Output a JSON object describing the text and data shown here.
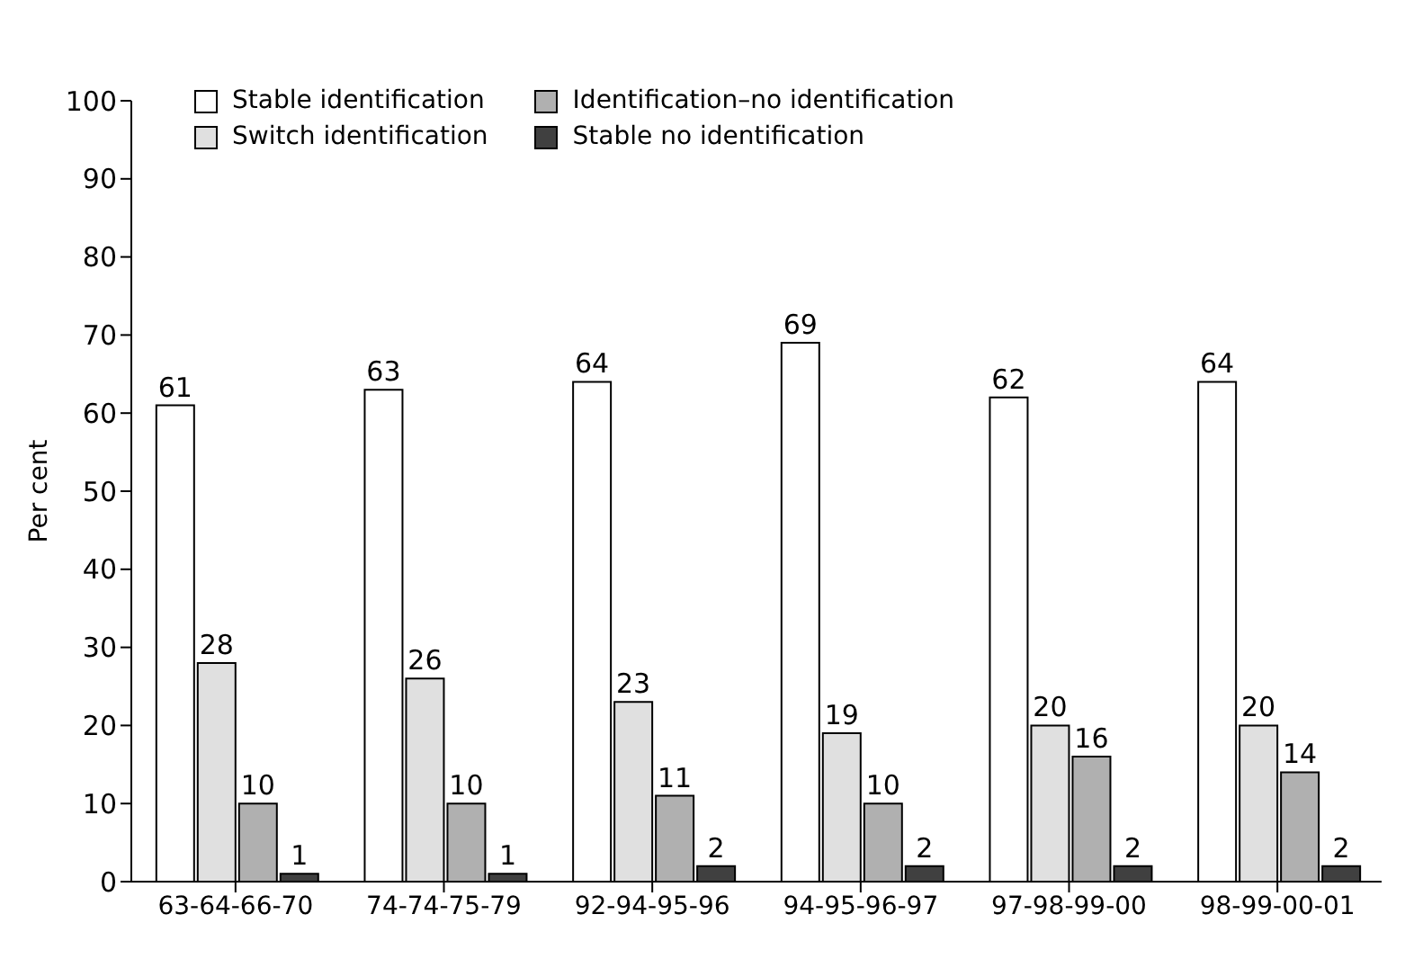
{
  "chart_data": {
    "type": "bar",
    "ylabel": "Per cent",
    "categories": [
      "63-64-66-70",
      "74-74-75-79",
      "92-94-95-96",
      "94-95-96-97",
      "97-98-99-00",
      "98-99-00-01"
    ],
    "series": [
      {
        "name": "Stable identification",
        "color": "#ffffff",
        "values": [
          61,
          63,
          64,
          69,
          62,
          64
        ]
      },
      {
        "name": "Switch identification",
        "color": "#e0e0e0",
        "values": [
          28,
          26,
          23,
          19,
          20,
          20
        ]
      },
      {
        "name": "Identification–no identification",
        "color": "#b0b0b0",
        "values": [
          10,
          10,
          11,
          10,
          16,
          14
        ]
      },
      {
        "name": "Stable no identification",
        "color": "#404040",
        "values": [
          1,
          1,
          2,
          2,
          2,
          2
        ]
      }
    ],
    "ylim": [
      0,
      100
    ],
    "yticks": [
      0,
      10,
      20,
      30,
      40,
      50,
      60,
      70,
      80,
      90,
      100
    ],
    "grid": false,
    "legend": "top left",
    "data_labels": true
  }
}
